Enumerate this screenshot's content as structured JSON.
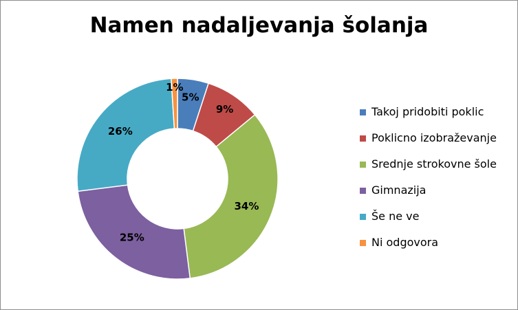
{
  "chart_data": {
    "type": "pie",
    "style": "donut",
    "title": "Namen nadaljevanja šolanja",
    "legend_position": "right",
    "categories": [
      "Takoj pridobiti poklic",
      "Poklicno izobraževanje",
      "Srednje strokovne šole",
      "Gimnazija",
      "Še ne ve",
      "Ni odgovora"
    ],
    "values": [
      5,
      9,
      34,
      25,
      26,
      1
    ],
    "labels": [
      "5%",
      "9%",
      "34%",
      "25%",
      "26%",
      "1%"
    ],
    "colors": [
      "#4a7ebb",
      "#be4b48",
      "#98b954",
      "#7d60a0",
      "#46aac5",
      "#f69240"
    ]
  }
}
